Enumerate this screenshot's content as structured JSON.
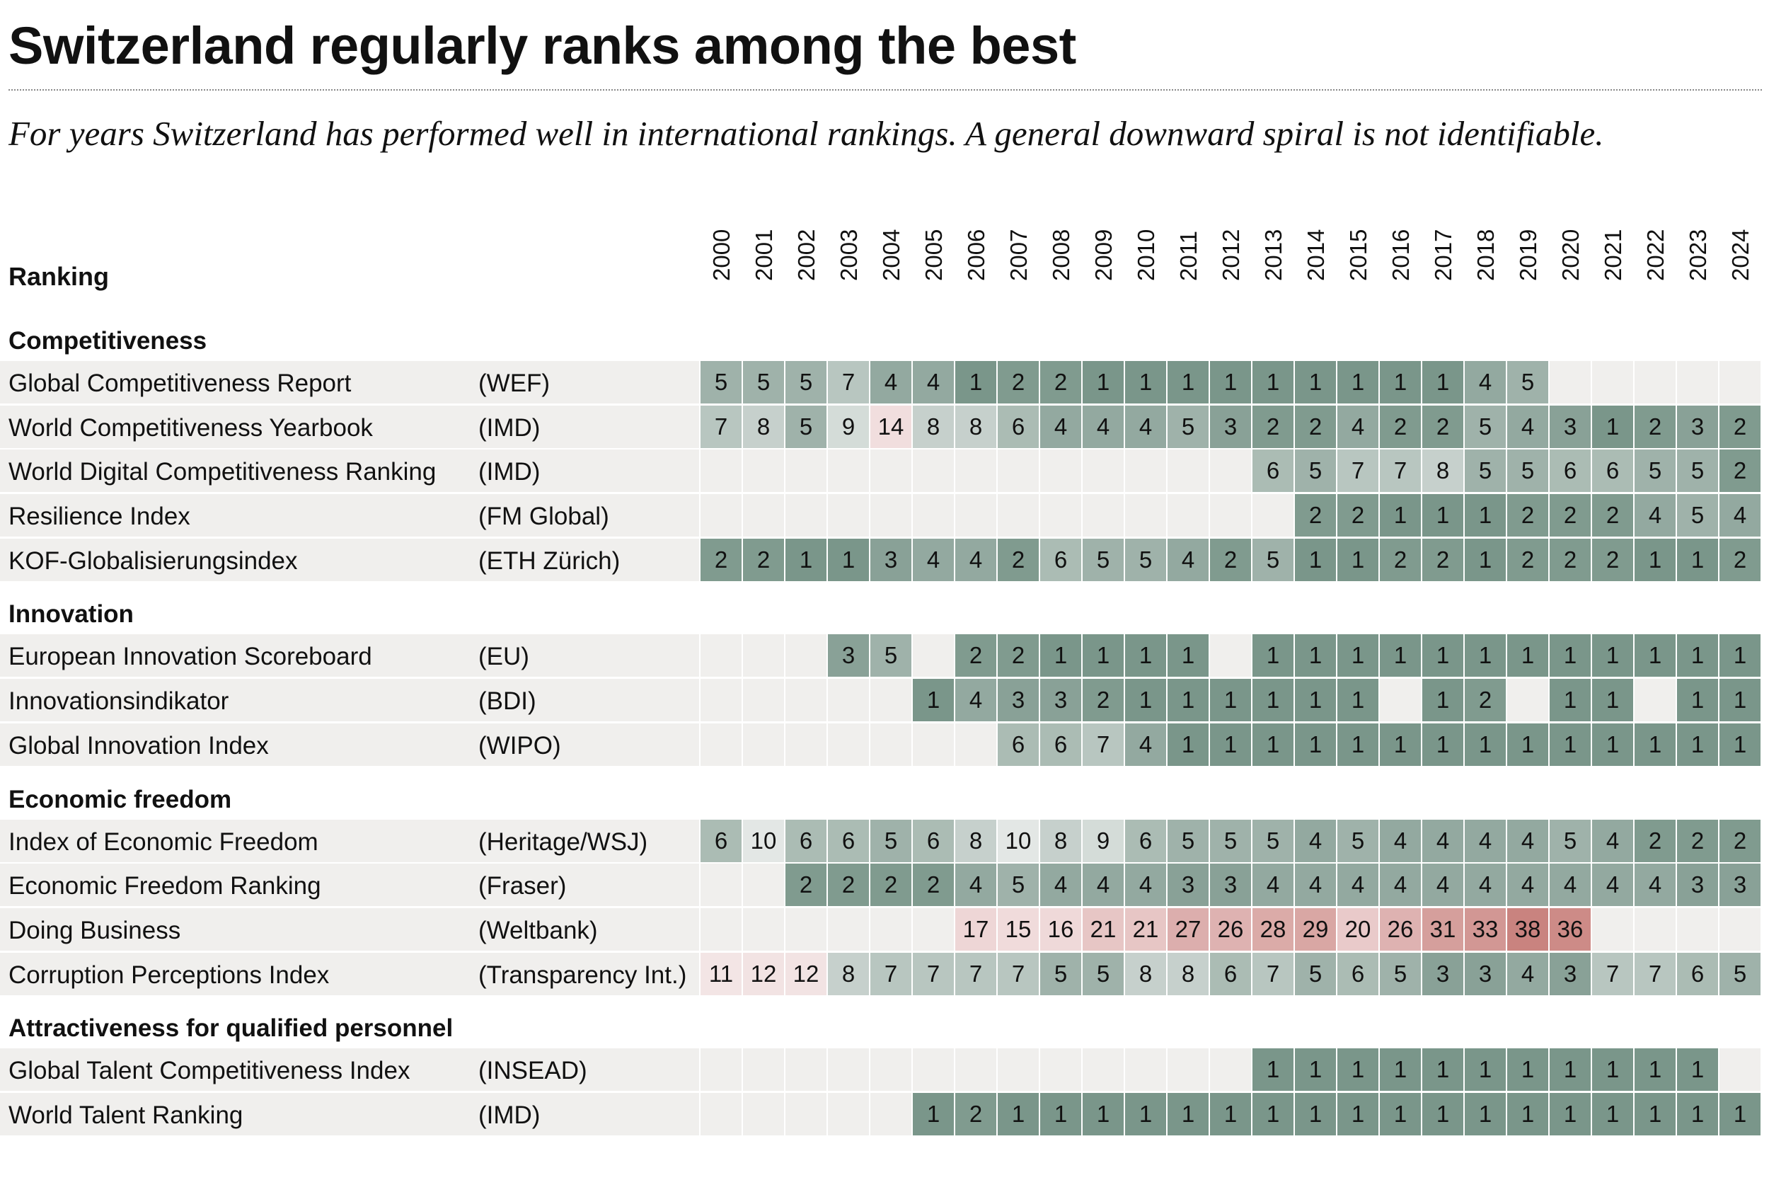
{
  "title": "Switzerland regularly ranks among the best",
  "subtitle": "For years Switzerland has performed well in international rankings. A general downward spiral is not identifiable.",
  "chart_data": {
    "type": "table",
    "column_header": "Ranking",
    "years": [
      "2000",
      "2001",
      "2002",
      "2003",
      "2004",
      "2005",
      "2006",
      "2007",
      "2008",
      "2009",
      "2010",
      "2011",
      "2012",
      "2013",
      "2014",
      "2015",
      "2016",
      "2017",
      "2018",
      "2019",
      "2020",
      "2021",
      "2022",
      "2023",
      "2024"
    ],
    "color_scale": {
      "rank_1": "#7a968a",
      "rank_10": "#e3e7e5",
      "rank_38": "#c9837f",
      "empty": "#f0efed"
    },
    "sections": [
      {
        "name": "Competitiveness",
        "rows": [
          {
            "name": "Global Competitiveness Report",
            "source": "(WEF)",
            "values": [
              5,
              5,
              5,
              7,
              4,
              4,
              1,
              2,
              2,
              1,
              1,
              1,
              1,
              1,
              1,
              1,
              1,
              1,
              4,
              5,
              null,
              null,
              null,
              null,
              null
            ]
          },
          {
            "name": "World Competitiveness Yearbook",
            "source": "(IMD)",
            "values": [
              7,
              8,
              5,
              9,
              14,
              8,
              8,
              6,
              4,
              4,
              4,
              5,
              3,
              2,
              2,
              4,
              2,
              2,
              5,
              4,
              3,
              1,
              2,
              3,
              2
            ]
          },
          {
            "name": "World Digital Competitiveness Ranking",
            "source": "(IMD)",
            "values": [
              null,
              null,
              null,
              null,
              null,
              null,
              null,
              null,
              null,
              null,
              null,
              null,
              null,
              6,
              5,
              7,
              7,
              8,
              5,
              5,
              6,
              6,
              5,
              5,
              2
            ]
          },
          {
            "name": "Resilience Index",
            "source": "(FM Global)",
            "values": [
              null,
              null,
              null,
              null,
              null,
              null,
              null,
              null,
              null,
              null,
              null,
              null,
              null,
              null,
              2,
              2,
              1,
              1,
              1,
              2,
              2,
              2,
              4,
              5,
              4
            ]
          },
          {
            "name": "KOF-Globalisierungsindex",
            "source": "(ETH Zürich)",
            "values": [
              2,
              2,
              1,
              1,
              3,
              4,
              4,
              2,
              6,
              5,
              5,
              4,
              2,
              5,
              1,
              1,
              2,
              2,
              1,
              2,
              2,
              2,
              1,
              1,
              2
            ]
          }
        ]
      },
      {
        "name": "Innovation",
        "rows": [
          {
            "name": "European Innovation Scoreboard",
            "source": "(EU)",
            "values": [
              null,
              null,
              null,
              3,
              5,
              null,
              2,
              2,
              1,
              1,
              1,
              1,
              null,
              1,
              1,
              1,
              1,
              1,
              1,
              1,
              1,
              1,
              1,
              1,
              1
            ]
          },
          {
            "name": "Innovationsindikator",
            "source": "(BDI)",
            "values": [
              null,
              null,
              null,
              null,
              null,
              1,
              4,
              3,
              3,
              2,
              1,
              1,
              1,
              1,
              1,
              1,
              null,
              1,
              2,
              null,
              1,
              1,
              null,
              1,
              1
            ]
          },
          {
            "name": "Global Innovation Index",
            "source": "(WIPO)",
            "values": [
              null,
              null,
              null,
              null,
              null,
              null,
              null,
              6,
              6,
              7,
              4,
              1,
              1,
              1,
              1,
              1,
              1,
              1,
              1,
              1,
              1,
              1,
              1,
              1,
              1
            ]
          }
        ]
      },
      {
        "name": "Economic freedom",
        "rows": [
          {
            "name": "Index of Economic Freedom",
            "source": "(Heritage/WSJ)",
            "values": [
              6,
              10,
              6,
              6,
              5,
              6,
              8,
              10,
              8,
              9,
              6,
              5,
              5,
              5,
              4,
              5,
              4,
              4,
              4,
              4,
              5,
              4,
              2,
              2,
              2
            ]
          },
          {
            "name": "Economic Freedom Ranking",
            "source": "(Fraser)",
            "values": [
              null,
              null,
              2,
              2,
              2,
              2,
              4,
              5,
              4,
              4,
              4,
              3,
              3,
              4,
              4,
              4,
              4,
              4,
              4,
              4,
              4,
              4,
              4,
              3,
              3
            ]
          },
          {
            "name": "Doing Business",
            "source": "(Weltbank)",
            "values": [
              null,
              null,
              null,
              null,
              null,
              null,
              17,
              15,
              16,
              21,
              21,
              27,
              26,
              28,
              29,
              20,
              26,
              31,
              33,
              38,
              36,
              null,
              null,
              null,
              null
            ]
          },
          {
            "name": "Corruption Perceptions Index",
            "source": "(Transparency Int.)",
            "values": [
              11,
              12,
              12,
              8,
              7,
              7,
              7,
              7,
              5,
              5,
              8,
              8,
              6,
              7,
              5,
              6,
              5,
              3,
              3,
              4,
              3,
              7,
              7,
              6,
              5
            ]
          }
        ]
      },
      {
        "name": "Attractiveness for qualified personnel",
        "rows": [
          {
            "name": "Global Talent Competitiveness Index",
            "source": "(INSEAD)",
            "values": [
              null,
              null,
              null,
              null,
              null,
              null,
              null,
              null,
              null,
              null,
              null,
              null,
              null,
              1,
              1,
              1,
              1,
              1,
              1,
              1,
              1,
              1,
              1,
              1,
              null
            ]
          },
          {
            "name": "World Talent Ranking",
            "source": "(IMD)",
            "values": [
              null,
              null,
              null,
              null,
              null,
              1,
              2,
              1,
              1,
              1,
              1,
              1,
              1,
              1,
              1,
              1,
              1,
              1,
              1,
              1,
              1,
              1,
              1,
              1,
              1
            ]
          }
        ]
      }
    ]
  }
}
